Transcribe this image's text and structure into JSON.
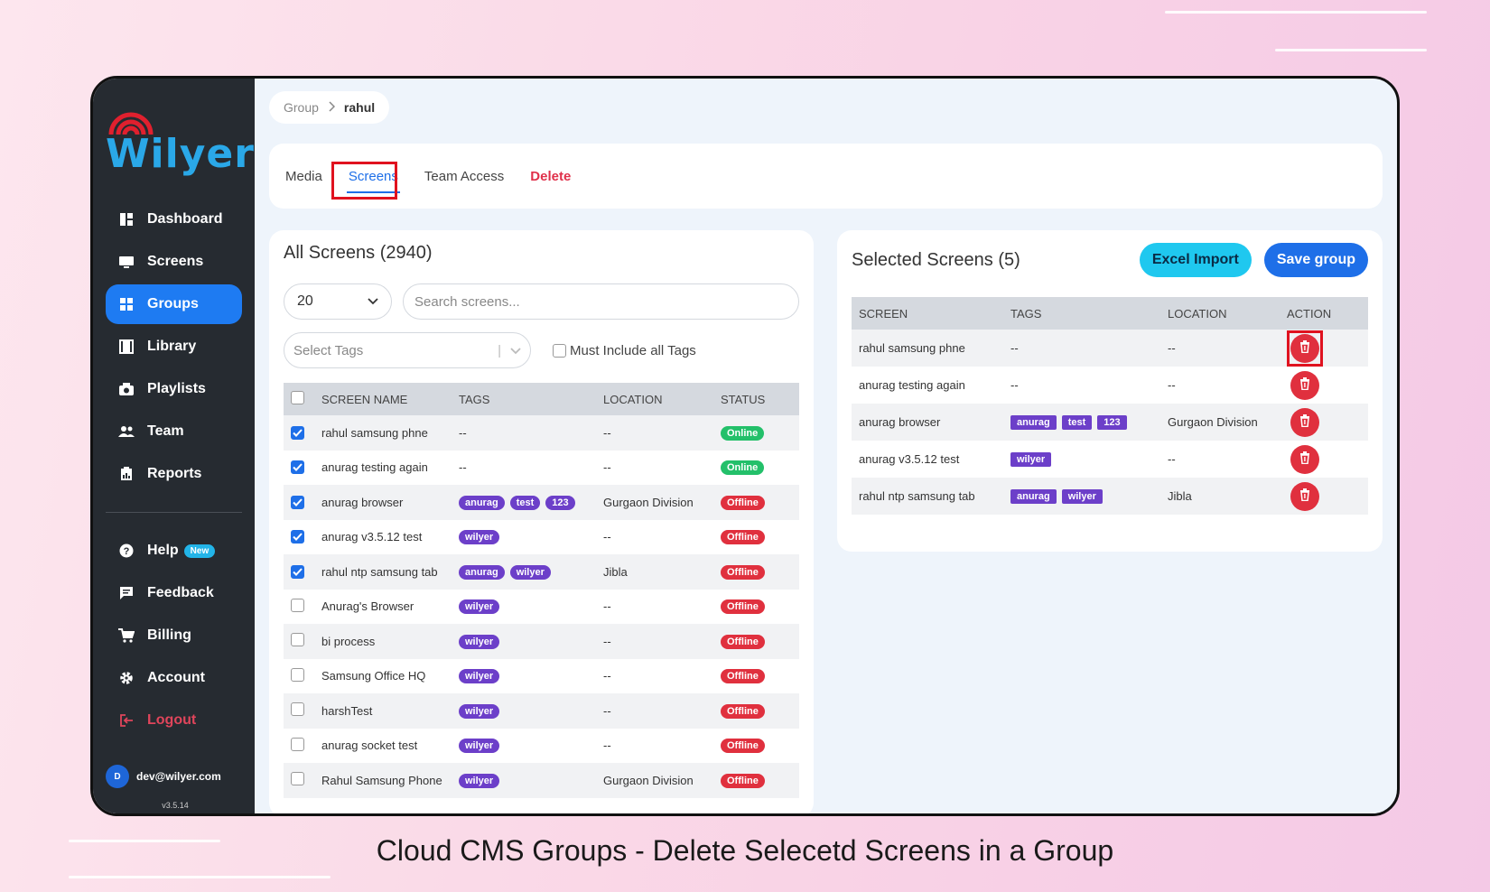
{
  "brand": {
    "name": "Wilyer",
    "color": "#2aa8e8"
  },
  "sidebar": {
    "items": [
      {
        "label": "Dashboard",
        "icon": "dashboard-icon"
      },
      {
        "label": "Screens",
        "icon": "monitor-icon"
      },
      {
        "label": "Groups",
        "icon": "grid-icon",
        "active": true
      },
      {
        "label": "Library",
        "icon": "film-icon"
      },
      {
        "label": "Playlists",
        "icon": "camera-icon"
      },
      {
        "label": "Team",
        "icon": "team-icon"
      },
      {
        "label": "Reports",
        "icon": "report-icon"
      }
    ],
    "bottom_items": [
      {
        "label": "Help",
        "icon": "help-icon",
        "badge": "New"
      },
      {
        "label": "Feedback",
        "icon": "feedback-icon"
      },
      {
        "label": "Billing",
        "icon": "cart-icon"
      },
      {
        "label": "Account",
        "icon": "gear-icon"
      },
      {
        "label": "Logout",
        "icon": "logout-icon"
      }
    ],
    "user": {
      "initial": "D",
      "email": "dev@wilyer.com"
    },
    "version": "v3.5.14"
  },
  "breadcrumb": {
    "parent": "Group",
    "current": "rahul"
  },
  "tabs": [
    {
      "label": "Media"
    },
    {
      "label": "Screens",
      "active": true
    },
    {
      "label": "Team Access"
    },
    {
      "label": "Delete"
    }
  ],
  "all_screens": {
    "title": "All Screens (2940)",
    "page_size": "20",
    "search_placeholder": "Search screens...",
    "tags_placeholder": "Select Tags",
    "must_include_label": "Must Include all Tags",
    "columns": [
      "SCREEN NAME",
      "TAGS",
      "LOCATION",
      "STATUS"
    ],
    "rows": [
      {
        "name": "rahul samsung phne",
        "tags": [],
        "location": "--",
        "status": "Online",
        "checked": true
      },
      {
        "name": "anurag testing again",
        "tags": [],
        "location": "--",
        "status": "Online",
        "checked": true
      },
      {
        "name": "anurag browser",
        "tags": [
          "anurag",
          "test",
          "123"
        ],
        "location": "Gurgaon Division",
        "status": "Offline",
        "checked": true
      },
      {
        "name": "anurag v3.5.12 test",
        "tags": [
          "wilyer"
        ],
        "location": "--",
        "status": "Offline",
        "checked": true
      },
      {
        "name": "rahul ntp samsung tab",
        "tags": [
          "anurag",
          "wilyer"
        ],
        "location": "Jibla",
        "status": "Offline",
        "checked": true
      },
      {
        "name": "Anurag's Browser",
        "tags": [
          "wilyer"
        ],
        "location": "--",
        "status": "Offline",
        "checked": false
      },
      {
        "name": "bi process",
        "tags": [
          "wilyer"
        ],
        "location": "--",
        "status": "Offline",
        "checked": false
      },
      {
        "name": "Samsung Office HQ",
        "tags": [
          "wilyer"
        ],
        "location": "--",
        "status": "Offline",
        "checked": false
      },
      {
        "name": "harshTest",
        "tags": [
          "wilyer"
        ],
        "location": "--",
        "status": "Offline",
        "checked": false
      },
      {
        "name": "anurag socket test",
        "tags": [
          "wilyer"
        ],
        "location": "--",
        "status": "Offline",
        "checked": false
      },
      {
        "name": "Rahul Samsung Phone",
        "tags": [
          "wilyer"
        ],
        "location": "Gurgaon Division",
        "status": "Offline",
        "checked": false
      }
    ]
  },
  "selected_screens": {
    "title": "Selected Screens (5)",
    "excel_import_label": "Excel Import",
    "save_group_label": "Save group",
    "columns": [
      "SCREEN",
      "TAGS",
      "LOCATION",
      "ACTION"
    ],
    "rows": [
      {
        "name": "rahul samsung phne",
        "tags": [],
        "location": "--"
      },
      {
        "name": "anurag testing again",
        "tags": [],
        "location": "--"
      },
      {
        "name": "anurag browser",
        "tags": [
          "anurag",
          "test",
          "123"
        ],
        "location": "Gurgaon Division"
      },
      {
        "name": "anurag v3.5.12 test",
        "tags": [
          "wilyer"
        ],
        "location": "--"
      },
      {
        "name": "rahul ntp samsung tab",
        "tags": [
          "anurag",
          "wilyer"
        ],
        "location": "Jibla"
      }
    ]
  },
  "caption": "Cloud CMS Groups - Delete Selecetd Screens in a Group",
  "colors": {
    "primary": "#1e6fe8",
    "danger": "#e0303e",
    "online": "#23c06a",
    "tag": "#6c3fc9",
    "sidebar": "#262b31"
  }
}
